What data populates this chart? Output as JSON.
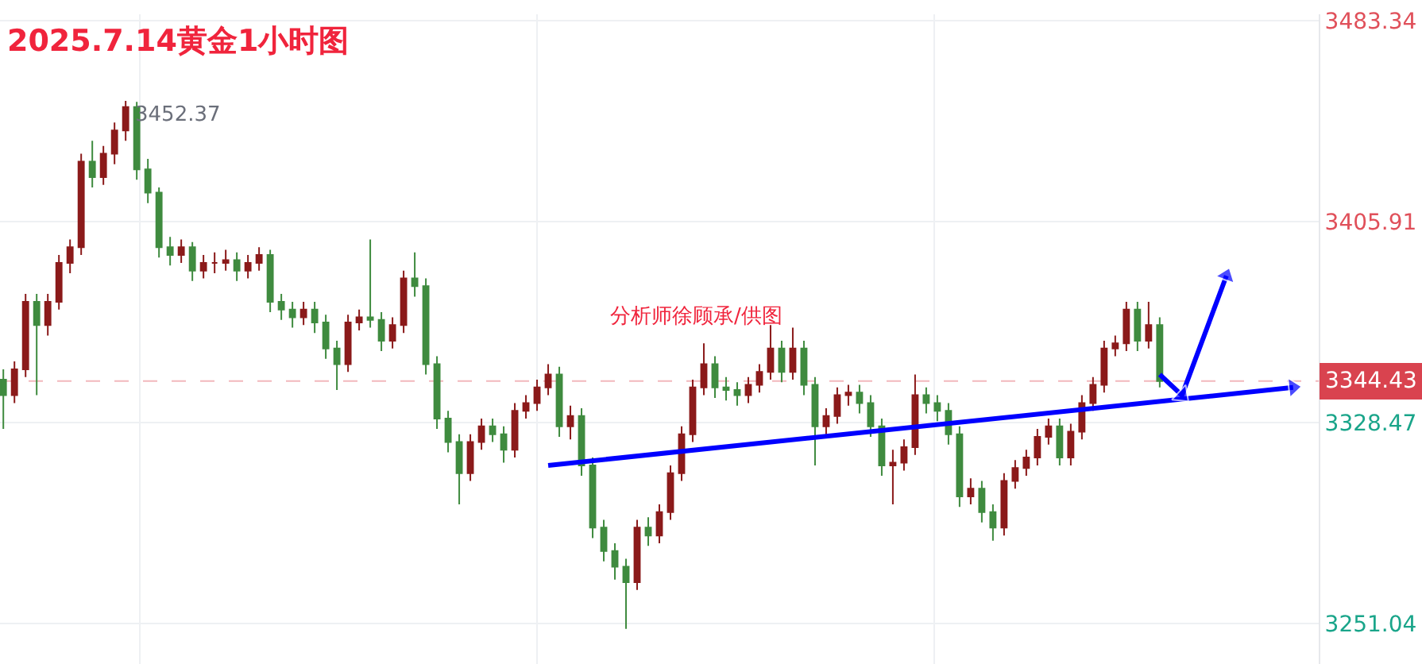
{
  "chart_data": {
    "type": "candlestick",
    "title": "2025.7.14黄金1小时图",
    "categories": [
      null,
      null,
      null,
      null,
      null,
      null,
      null,
      null,
      null,
      null,
      null,
      null,
      null,
      null,
      null,
      null,
      null,
      null,
      null,
      null,
      null,
      null,
      null,
      null,
      null,
      null,
      null,
      null,
      null,
      null,
      null,
      null,
      null,
      null,
      null,
      null,
      null,
      null,
      null,
      null,
      null,
      null,
      null,
      null,
      null,
      null,
      null,
      null,
      null,
      null,
      null,
      null,
      null,
      null,
      null,
      null,
      null,
      null,
      null,
      null,
      null,
      null,
      null,
      null,
      null,
      null,
      null,
      null,
      null,
      null,
      null,
      null,
      null,
      null,
      null,
      null,
      null,
      null,
      null,
      null,
      null,
      null,
      null,
      null,
      null,
      null,
      null,
      null,
      null,
      null,
      null,
      null,
      null,
      null,
      null,
      null,
      null,
      null,
      null,
      null,
      null,
      null,
      null,
      null,
      null,
      null,
      null,
      null,
      null,
      null,
      null,
      null,
      null,
      null,
      null,
      null,
      null,
      null,
      null
    ],
    "ohlc": [
      [
        3345,
        3349,
        3326,
        3339
      ],
      [
        3339,
        3352,
        3336,
        3349
      ],
      [
        3349,
        3378,
        3346,
        3375
      ],
      [
        3375,
        3378,
        3339,
        3366
      ],
      [
        3366,
        3378,
        3362,
        3375
      ],
      [
        3375,
        3393,
        3372,
        3390
      ],
      [
        3390,
        3399,
        3386,
        3396
      ],
      [
        3396,
        3432,
        3393,
        3429
      ],
      [
        3429,
        3437,
        3419,
        3423
      ],
      [
        3423,
        3435,
        3420,
        3432
      ],
      [
        3432,
        3444,
        3428,
        3441
      ],
      [
        3441,
        3452.37,
        3437,
        3450
      ],
      [
        3450,
        3452,
        3422,
        3426
      ],
      [
        3426,
        3430,
        3413,
        3417
      ],
      [
        3417,
        3419,
        3392,
        3396
      ],
      [
        3396,
        3400,
        3389,
        3393
      ],
      [
        3393,
        3399,
        3390,
        3396
      ],
      [
        3396,
        3398,
        3383,
        3387
      ],
      [
        3387,
        3393,
        3384,
        3390
      ],
      [
        3390,
        3394,
        3386,
        3390
      ],
      [
        3390,
        3395,
        3387,
        3391
      ],
      [
        3391,
        3394,
        3383,
        3387
      ],
      [
        3387,
        3393,
        3384,
        3390
      ],
      [
        3390,
        3396,
        3387,
        3393
      ],
      [
        3393,
        3395,
        3371,
        3375
      ],
      [
        3375,
        3378,
        3368,
        3372
      ],
      [
        3372,
        3375,
        3365,
        3369
      ],
      [
        3369,
        3375,
        3366,
        3372
      ],
      [
        3372,
        3375,
        3363,
        3367
      ],
      [
        3367,
        3370,
        3353,
        3357
      ],
      [
        3357,
        3360,
        3341,
        3351
      ],
      [
        3351,
        3370,
        3348,
        3367
      ],
      [
        3367,
        3372,
        3364,
        3369
      ],
      [
        3369,
        3399,
        3365,
        3368
      ],
      [
        3368,
        3371,
        3356,
        3360
      ],
      [
        3360,
        3369,
        3357,
        3366
      ],
      [
        3366,
        3387,
        3363,
        3384
      ],
      [
        3384,
        3394,
        3377,
        3381
      ],
      [
        3381,
        3384,
        3347,
        3351
      ],
      [
        3351,
        3354,
        3326,
        3330
      ],
      [
        3330,
        3333,
        3317,
        3321
      ],
      [
        3321,
        3324,
        3297,
        3309
      ],
      [
        3309,
        3324,
        3306,
        3321
      ],
      [
        3321,
        3330,
        3318,
        3327
      ],
      [
        3327,
        3330,
        3321,
        3324
      ],
      [
        3324,
        3327,
        3313,
        3318
      ],
      [
        3318,
        3336,
        3315,
        3333
      ],
      [
        3333,
        3339,
        3330,
        3336
      ],
      [
        3336,
        3345,
        3333,
        3342
      ],
      [
        3342,
        3351,
        3339,
        3347
      ],
      [
        3347,
        3350,
        3323,
        3327
      ],
      [
        3327,
        3335,
        3322,
        3331
      ],
      [
        3331,
        3334,
        3308,
        3312
      ],
      [
        3312,
        3315,
        3284,
        3288
      ],
      [
        3288,
        3291,
        3275,
        3279
      ],
      [
        3279,
        3282,
        3268,
        3273
      ],
      [
        3273,
        3276,
        3249,
        3267
      ],
      [
        3267,
        3291,
        3264,
        3288
      ],
      [
        3288,
        3292,
        3281,
        3285
      ],
      [
        3285,
        3297,
        3282,
        3294
      ],
      [
        3294,
        3312,
        3291,
        3309
      ],
      [
        3309,
        3327,
        3306,
        3324
      ],
      [
        3324,
        3345,
        3321,
        3342
      ],
      [
        3342,
        3359,
        3339,
        3351
      ],
      [
        3351,
        3354,
        3338,
        3342
      ],
      [
        3342,
        3346,
        3337,
        3341
      ],
      [
        3341,
        3344,
        3335,
        3339
      ],
      [
        3339,
        3346,
        3336,
        3343
      ],
      [
        3343,
        3351,
        3340,
        3348
      ],
      [
        3348,
        3366,
        3345,
        3357
      ],
      [
        3357,
        3360,
        3344,
        3348
      ],
      [
        3348,
        3365,
        3345,
        3357
      ],
      [
        3357,
        3360,
        3339,
        3343
      ],
      [
        3343,
        3346,
        3312,
        3327
      ],
      [
        3327,
        3334,
        3324,
        3331
      ],
      [
        3331,
        3342,
        3328,
        3339
      ],
      [
        3339,
        3343,
        3335,
        3340
      ],
      [
        3340,
        3343,
        3332,
        3336
      ],
      [
        3336,
        3339,
        3323,
        3327
      ],
      [
        3327,
        3330,
        3308,
        3312
      ],
      [
        3312,
        3318,
        3297,
        3313
      ],
      [
        3313,
        3322,
        3310,
        3319
      ],
      [
        3319,
        3347,
        3316,
        3339
      ],
      [
        3339,
        3342,
        3332,
        3336
      ],
      [
        3336,
        3339,
        3329,
        3333
      ],
      [
        3333,
        3336,
        3320,
        3324
      ],
      [
        3324,
        3327,
        3296,
        3300
      ],
      [
        3300,
        3307,
        3297,
        3303
      ],
      [
        3303,
        3306,
        3290,
        3294
      ],
      [
        3294,
        3297,
        3283,
        3288
      ],
      [
        3288,
        3309,
        3285,
        3306
      ],
      [
        3306,
        3314,
        3303,
        3311
      ],
      [
        3311,
        3318,
        3308,
        3315
      ],
      [
        3315,
        3326,
        3312,
        3323
      ],
      [
        3323,
        3330,
        3320,
        3327
      ],
      [
        3327,
        3330,
        3312,
        3315
      ],
      [
        3315,
        3328,
        3312,
        3325
      ],
      [
        3325,
        3339,
        3322,
        3336
      ],
      [
        3336,
        3346,
        3333,
        3343
      ],
      [
        3343,
        3360,
        3340,
        3357
      ],
      [
        3357,
        3362,
        3354,
        3359
      ],
      [
        3359,
        3375,
        3356,
        3372
      ],
      [
        3372,
        3375,
        3356,
        3360
      ],
      [
        3360,
        3375,
        3357,
        3366
      ],
      [
        3366,
        3369,
        3342,
        3344.43
      ],
      null,
      null,
      null,
      null,
      null,
      null,
      null,
      null,
      null,
      null,
      null,
      null,
      null,
      null
    ],
    "series": [
      {
        "type": "line",
        "color": "#0000ff",
        "values": [
          null,
          null,
          null,
          null,
          null,
          null,
          null,
          null,
          null,
          null,
          null,
          null,
          null,
          null,
          null,
          null,
          null,
          null,
          null,
          null,
          null,
          null,
          null,
          null,
          null,
          null,
          null,
          null,
          null,
          null,
          null,
          null,
          null,
          null,
          null,
          null,
          null,
          null,
          null,
          null,
          null,
          null,
          null,
          null,
          null,
          null,
          null,
          null,
          null,
          3312,
          null,
          null,
          null,
          null,
          null,
          null,
          null,
          null,
          null,
          null,
          null,
          null,
          null,
          null,
          null,
          null,
          null,
          null,
          null,
          null,
          null,
          null,
          null,
          null,
          null,
          null,
          null,
          null,
          null,
          null,
          null,
          null,
          null,
          null,
          null,
          null,
          null,
          null,
          null,
          null,
          null,
          null,
          null,
          null,
          null,
          null,
          null,
          null,
          null,
          null,
          null,
          null,
          null,
          null,
          null,
          null,
          null,
          null,
          null,
          null,
          null,
          null,
          null,
          null,
          null,
          null,
          3342,
          null,
          null
        ]
      },
      {
        "type": "line",
        "color": "#0000ff",
        "values": [
          null,
          null,
          null,
          null,
          null,
          null,
          null,
          null,
          null,
          null,
          null,
          null,
          null,
          null,
          null,
          null,
          null,
          null,
          null,
          null,
          null,
          null,
          null,
          null,
          null,
          null,
          null,
          null,
          null,
          null,
          null,
          null,
          null,
          null,
          null,
          null,
          null,
          null,
          null,
          null,
          null,
          null,
          null,
          null,
          null,
          null,
          null,
          null,
          null,
          null,
          null,
          null,
          null,
          null,
          null,
          null,
          null,
          null,
          null,
          null,
          null,
          null,
          null,
          null,
          null,
          null,
          null,
          null,
          null,
          null,
          null,
          null,
          null,
          null,
          null,
          null,
          null,
          null,
          null,
          null,
          null,
          null,
          null,
          null,
          null,
          null,
          null,
          null,
          null,
          null,
          null,
          null,
          null,
          null,
          null,
          null,
          null,
          null,
          null,
          null,
          null,
          null,
          null,
          null,
          3347,
          null,
          3339,
          null,
          null,
          null,
          3385,
          null,
          null,
          null,
          null,
          null,
          null,
          null,
          null
        ]
      }
    ],
    "marker": "triangle",
    "ylim": [
      3235.5,
      3485.7
    ],
    "yticks": [
      3251.04,
      3328.47,
      3405.91,
      3483.34
    ],
    "tick_labels": "y",
    "grid": "y",
    "ref_lines": [
      {
        "axis": "y",
        "value": 3344.43,
        "label": "3344.43",
        "color": "#f2b8bd",
        "line_style": "dashed"
      }
    ],
    "annotations": [
      "3452.37",
      "分析师徐顾承/供图"
    ]
  }
}
